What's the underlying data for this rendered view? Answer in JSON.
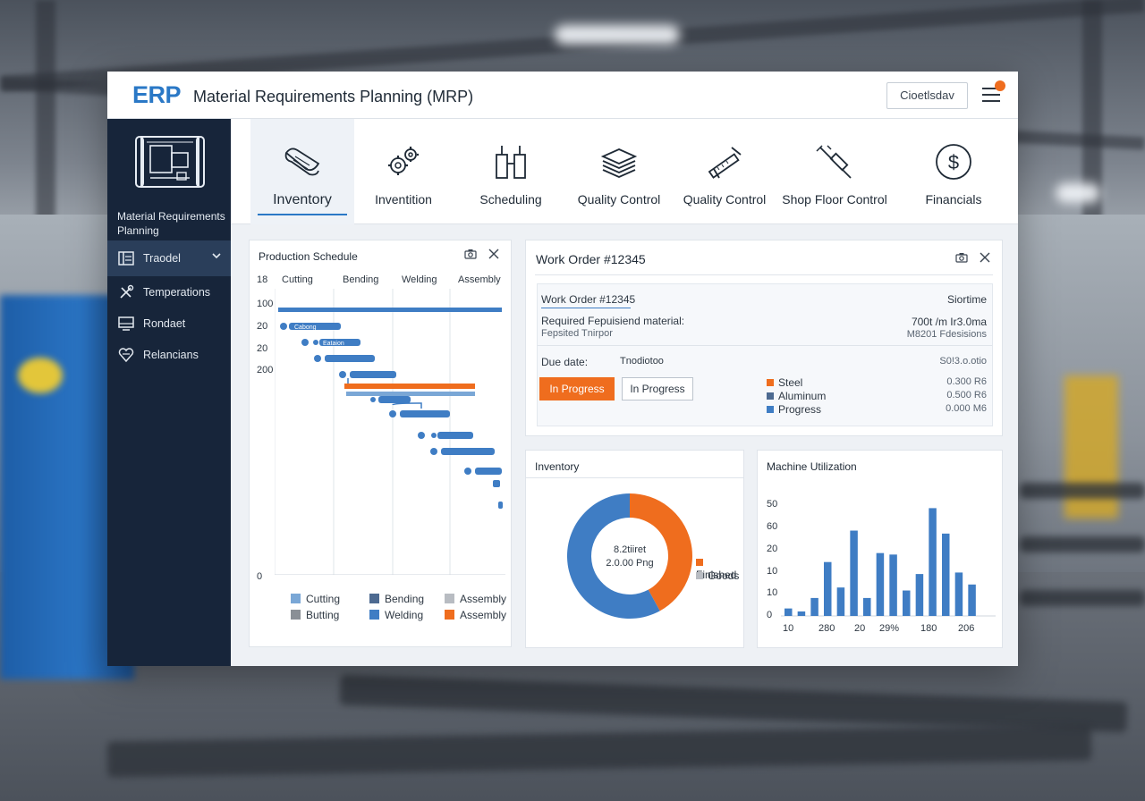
{
  "app": {
    "logo": "ERP",
    "title": "Material Requirements Planning (MRP)",
    "header_button": "Cioetlsdav"
  },
  "sidebar": {
    "caption": "Material Requirements Planning",
    "items": [
      {
        "label": "Traodel",
        "icon": "list-icon",
        "active": true
      },
      {
        "label": "Temperations",
        "icon": "tools-icon",
        "active": false
      },
      {
        "label": "Rondaet",
        "icon": "screen-icon",
        "active": false
      },
      {
        "label": "Relancians",
        "icon": "heart-network-icon",
        "active": false
      }
    ]
  },
  "modules": [
    {
      "label": "Inventory",
      "icon": "blueprint-scroll-icon",
      "active": true
    },
    {
      "label": "Inventition",
      "icon": "gears-icon",
      "active": false
    },
    {
      "label": "Scheduling",
      "icon": "tools-icon",
      "active": false
    },
    {
      "label": "Quality Control",
      "icon": "layers-icon",
      "active": false
    },
    {
      "label": "Quality Control",
      "icon": "caliper-icon",
      "active": false
    },
    {
      "label": "Shop Floor Control",
      "icon": "welding-torch-icon",
      "active": false
    },
    {
      "label": "Financials",
      "icon": "dollar-icon",
      "active": false
    }
  ],
  "production_schedule": {
    "title": "Production Schedule",
    "corner_label": "18",
    "stages": [
      "Cutting",
      "Bending",
      "Welding",
      "Assembly"
    ],
    "y_labels": [
      "100",
      "20",
      "20",
      "200",
      "0"
    ],
    "legend": [
      {
        "label": "Cutting",
        "color": "#7aa7d6"
      },
      {
        "label": "Bending",
        "color": "#4d6a91"
      },
      {
        "label": "Assembly",
        "color": "#b8bcc2"
      },
      {
        "label": "Butting",
        "color": "#8a8f96"
      },
      {
        "label": "Welding",
        "color": "#3f7dc4"
      },
      {
        "label": "Assembly",
        "color": "#ef6d1e"
      }
    ],
    "bar_labels": [
      "Cabong",
      "Eataion"
    ]
  },
  "work_order": {
    "title": "Work Order #12345",
    "sub_title": "Work Order #12345",
    "sub_right": "Siortime",
    "required_label": "Required Fepuisiend material:",
    "required_sub": "Fepsited Tnirpor",
    "required_value": "700t /m Ir3.0ma",
    "required_value_sub": "M8201 Fdesisions",
    "due_label": "Due date:",
    "due_value": "Tnodiotoo",
    "due_right": "S0!3.o.otio",
    "status_primary": "In Progress",
    "status_secondary": "In Progress",
    "materials": [
      {
        "label": "Steel",
        "value": "0.300 R6",
        "color": "#ef6d1e"
      },
      {
        "label": "Aluminum",
        "value": "0.500 R6",
        "color": "#4d6a91"
      },
      {
        "label": "Progress",
        "value": "0.000 M6",
        "color": "#3f7dc4"
      }
    ]
  },
  "inventory": {
    "title": "Inventory",
    "center_line1": "8.2tiiret",
    "center_line2": "2.0.00 Png",
    "legend": [
      {
        "label": "Finished",
        "color": "#ef6d1e"
      },
      {
        "label": "Goods",
        "color": "#b8bcc2"
      }
    ],
    "chart_data": {
      "type": "pie",
      "slices": [
        {
          "label": "Finished",
          "value": 42,
          "color": "#ef6d1e"
        },
        {
          "label": "Goods",
          "value": 58,
          "color": "#3f7dc4"
        }
      ]
    }
  },
  "machine_utilization": {
    "title": "Machine Utilization",
    "y_labels": [
      "50",
      "60",
      "20",
      "10",
      "10",
      "0"
    ],
    "x_labels": [
      "10",
      "280",
      "20",
      "29%",
      "180",
      "206"
    ],
    "chart_data": {
      "type": "bar",
      "values": [
        5,
        3,
        12,
        36,
        19,
        57,
        12,
        42,
        41,
        17,
        28,
        72,
        55,
        29,
        21
      ],
      "ylim": [
        0,
        80
      ],
      "color": "#3f7dc4"
    }
  }
}
